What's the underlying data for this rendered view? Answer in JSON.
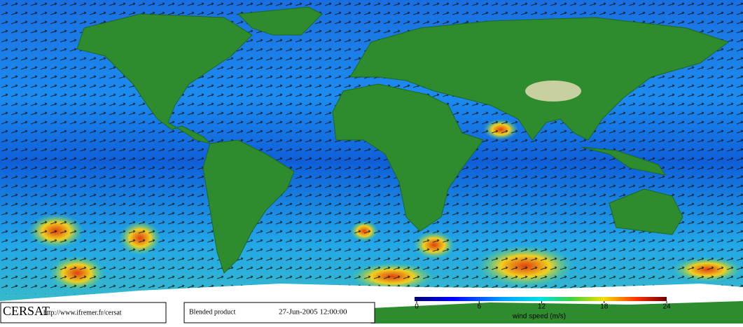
{
  "footer": {
    "logo": "CERSAT",
    "url": "http://www.ifremer.fr/cersat",
    "product": "Blended product",
    "date": "27-Jun-2005 12:00:00"
  },
  "colorbar": {
    "label": "wind speed (m/s)",
    "range": [
      0,
      24
    ],
    "ticks": [
      0,
      6,
      12,
      18,
      24
    ]
  }
}
